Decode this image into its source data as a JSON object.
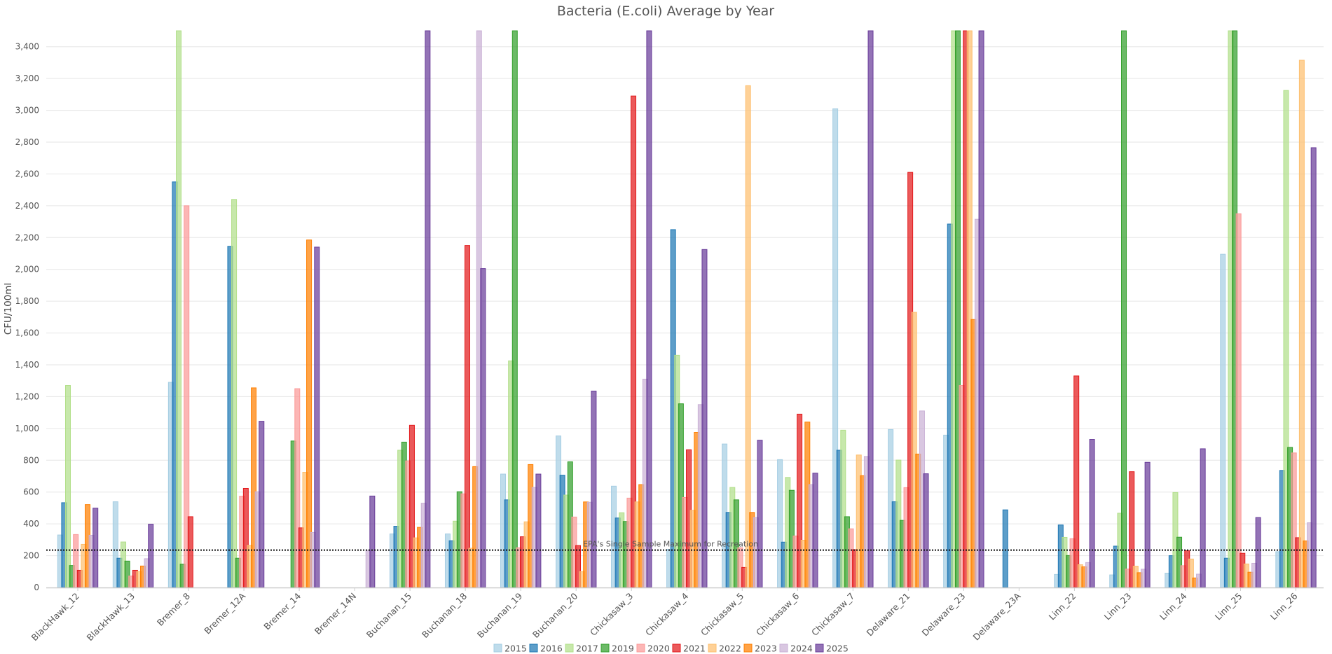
{
  "chart_data": {
    "type": "bar",
    "title": "Bacteria (E.coli) Average by Year",
    "xlabel": "",
    "ylabel": "CFU/100ml",
    "ylim": [
      0,
      3500
    ],
    "yticks": [
      0,
      200,
      400,
      600,
      800,
      1000,
      1200,
      1400,
      1600,
      1800,
      2000,
      2200,
      2400,
      2600,
      2800,
      3000,
      3200,
      3400
    ],
    "ytick_labels": [
      "0",
      "200",
      "400",
      "600",
      "800",
      "1,000",
      "1,200",
      "1,400",
      "1,600",
      "1,800",
      "2,000",
      "2,200",
      "2,400",
      "2,600",
      "2,800",
      "3,000",
      "3,200",
      "3,400"
    ],
    "grid": true,
    "legend_position": "bottom-center",
    "note": "values at 3500 are clipped at top of axis",
    "categories": [
      "BlackHawk_12",
      "BlackHawk_13",
      "Bremer_8",
      "Bremer_12A",
      "Bremer_14",
      "Bremer_14N",
      "Buchanan_15",
      "Buchanan_18",
      "Buchanan_19",
      "Buchanan_20",
      "Chickasaw_3",
      "Chickasaw_4",
      "Chickasaw_5",
      "Chickasaw_6",
      "Chickasaw_7",
      "Delaware_21",
      "Delaware_23",
      "Delaware_23A",
      "Linn_22",
      "Linn_23",
      "Linn_24",
      "Linn_25",
      "Linn_26"
    ],
    "series": [
      {
        "name": "2015",
        "color": "#a6cee3",
        "values": [
          330,
          539,
          1290,
          null,
          null,
          null,
          337,
          337,
          713,
          953,
          637,
          240,
          902,
          804,
          3010,
          993,
          958,
          null,
          82,
          79,
          90,
          2095,
          225
        ]
      },
      {
        "name": "2016",
        "color": "#1f78b4",
        "values": [
          533,
          184,
          2550,
          2145,
          null,
          null,
          385,
          294,
          551,
          706,
          437,
          2250,
          472,
          285,
          863,
          539,
          2285,
          488,
          393,
          260,
          200,
          184,
          736
        ]
      },
      {
        "name": "2017",
        "color": "#b2df8a",
        "values": [
          1270,
          286,
          3500,
          2440,
          null,
          null,
          863,
          417,
          1425,
          581,
          470,
          1460,
          629,
          692,
          989,
          801,
          3500,
          null,
          315,
          467,
          597,
          3500,
          3125
        ]
      },
      {
        "name": "2019",
        "color": "#33a02c",
        "values": [
          138,
          166,
          147,
          184,
          921,
          null,
          914,
          602,
          3500,
          790,
          415,
          1155,
          551,
          611,
          445,
          422,
          3500,
          null,
          201,
          3500,
          316,
          3500,
          881
        ]
      },
      {
        "name": "2020",
        "color": "#fb9a99",
        "values": [
          333,
          72,
          2400,
          574,
          1250,
          null,
          796,
          589,
          250,
          443,
          562,
          566,
          250,
          324,
          369,
          628,
          1270,
          null,
          307,
          116,
          137,
          2350,
          846
        ]
      },
      {
        "name": "2021",
        "color": "#e31a1c",
        "values": [
          108,
          108,
          445,
          623,
          375,
          null,
          1020,
          2150,
          319,
          264,
          3090,
          866,
          126,
          1090,
          238,
          2610,
          3500,
          null,
          1330,
          728,
          231,
          215,
          313
        ]
      },
      {
        "name": "2022",
        "color": "#fdbf6f",
        "values": [
          271,
          100,
          null,
          265,
          724,
          null,
          312,
          247,
          413,
          100,
          538,
          485,
          3155,
          297,
          833,
          1730,
          3500,
          null,
          143,
          134,
          179,
          148,
          3315
        ]
      },
      {
        "name": "2023",
        "color": "#ff7f00",
        "values": [
          521,
          135,
          null,
          1255,
          2185,
          null,
          378,
          760,
          773,
          538,
          647,
          975,
          472,
          1040,
          703,
          839,
          1685,
          null,
          130,
          93,
          60,
          96,
          293
        ]
      },
      {
        "name": "2024",
        "color": "#cab2d6",
        "values": [
          328,
          181,
          null,
          602,
          346,
          235,
          530,
          3500,
          629,
          536,
          1310,
          1150,
          440,
          647,
          824,
          1110,
          2315,
          null,
          157,
          115,
          84,
          152,
          407
        ]
      },
      {
        "name": "2025",
        "color": "#6a3d9a",
        "values": [
          499,
          398,
          null,
          1045,
          2140,
          575,
          3500,
          2005,
          713,
          1235,
          3500,
          2125,
          926,
          719,
          3500,
          715,
          3500,
          null,
          931,
          787,
          872,
          440,
          2765
        ]
      }
    ],
    "reference_line": {
      "value": 235,
      "label": "EPA's Single Sample Maximum for Recreation",
      "color": "#111111"
    }
  }
}
